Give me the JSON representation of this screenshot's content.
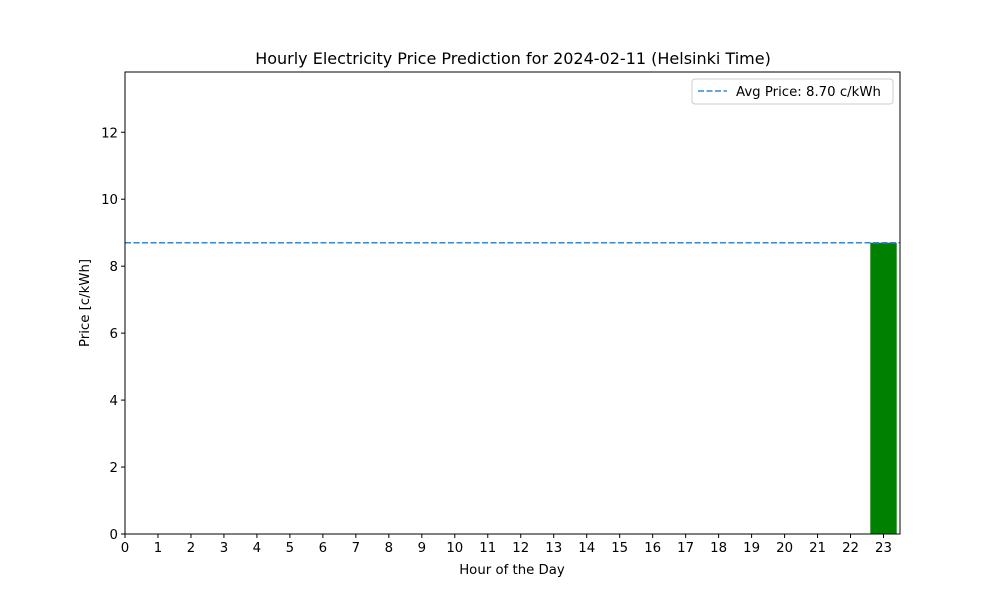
{
  "chart_data": {
    "type": "bar",
    "title": "Hourly Electricity Price Prediction for 2024-02-11 (Helsinki Time)",
    "xlabel": "Hour of the Day",
    "ylabel": "Price [c/kWh]",
    "x_ticks": [
      "0",
      "1",
      "2",
      "3",
      "4",
      "5",
      "6",
      "7",
      "8",
      "9",
      "10",
      "11",
      "12",
      "13",
      "14",
      "15",
      "16",
      "17",
      "18",
      "19",
      "20",
      "21",
      "22",
      "23"
    ],
    "xlim": [
      0,
      23.5
    ],
    "y_ticks": [
      "0",
      "2",
      "4",
      "6",
      "8",
      "10",
      "12"
    ],
    "ylim": [
      0,
      13.8
    ],
    "grid": false,
    "bars": [
      {
        "hour": 23,
        "value": 8.7
      }
    ],
    "bar_color": "#008000",
    "average_line": {
      "value": 8.7,
      "label": "Avg Price: 8.70 c/kWh",
      "color": "#3a87c8",
      "style": "dashed"
    },
    "legend_position": "top-right"
  }
}
